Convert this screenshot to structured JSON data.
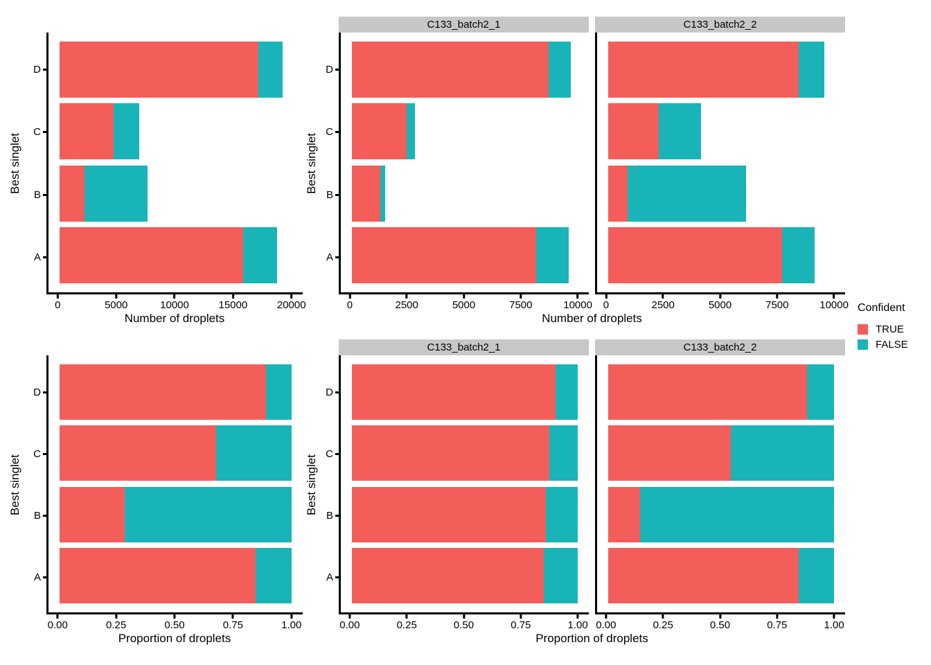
{
  "figure": {
    "background": "#FFFFFF"
  },
  "colors": {
    "TRUE": "#F35E5A",
    "FALSE": "#18B4B8",
    "strip_background": "#C7C7C7",
    "axis": "#000000"
  },
  "legend": {
    "title": "Confident",
    "items": [
      {
        "label": "TRUE",
        "color_key": "TRUE"
      },
      {
        "label": "FALSE",
        "color_key": "FALSE"
      }
    ]
  },
  "chart_data": [
    {
      "type": "bar",
      "orientation": "horizontal",
      "stacked": true,
      "panel": "counts combined",
      "xlabel": "Number of droplets",
      "ylabel": "Best singlet",
      "categories": [
        "A",
        "B",
        "C",
        "D"
      ],
      "series": [
        {
          "name": "TRUE",
          "values": [
            15850,
            2120,
            4660,
            17140
          ]
        },
        {
          "name": "FALSE",
          "values": [
            2880,
            5450,
            2230,
            2100
          ]
        }
      ],
      "xlim": [
        0,
        20000
      ],
      "tick_values": [
        0,
        5000,
        10000,
        15000,
        20000
      ],
      "tick_labels": [
        "0",
        "5000",
        "10000",
        "15000",
        "20000"
      ],
      "grid": false
    },
    {
      "type": "bar",
      "orientation": "horizontal",
      "stacked": true,
      "panel": "counts by sample",
      "xlabel": "Number of droplets",
      "ylabel": "Best singlet",
      "categories": [
        "A",
        "B",
        "C",
        "D"
      ],
      "facets": [
        {
          "label": "C133_batch2_1",
          "series": [
            {
              "name": "TRUE",
              "values": [
                8150,
                1260,
                2430,
                8720
              ]
            },
            {
              "name": "FALSE",
              "values": [
                1450,
                210,
                350,
                960
              ]
            }
          ]
        },
        {
          "label": "C133_batch2_2",
          "series": [
            {
              "name": "TRUE",
              "values": [
                7700,
                860,
                2230,
                8420
              ]
            },
            {
              "name": "FALSE",
              "values": [
                1430,
                5240,
                1880,
                1140
              ]
            }
          ]
        }
      ],
      "xlim": [
        0,
        10000
      ],
      "tick_values": [
        0,
        2500,
        5000,
        7500,
        10000
      ],
      "tick_labels": [
        "0",
        "2500",
        "5000",
        "7500",
        "10000"
      ],
      "grid": false
    },
    {
      "type": "bar",
      "orientation": "horizontal",
      "stacked": true,
      "panel": "proportions combined",
      "xlabel": "Proportion of droplets",
      "ylabel": "Best singlet",
      "categories": [
        "A",
        "B",
        "C",
        "D"
      ],
      "series": [
        {
          "name": "TRUE",
          "values": [
            0.846,
            0.28,
            0.676,
            0.891
          ]
        },
        {
          "name": "FALSE",
          "values": [
            0.154,
            0.72,
            0.324,
            0.109
          ]
        }
      ],
      "xlim": [
        0,
        1
      ],
      "tick_values": [
        0,
        0.25,
        0.5,
        0.75,
        1
      ],
      "tick_labels": [
        "0.00",
        "0.25",
        "0.50",
        "0.75",
        "1.00"
      ],
      "grid": false
    },
    {
      "type": "bar",
      "orientation": "horizontal",
      "stacked": true,
      "panel": "proportions by sample",
      "xlabel": "Proportion of droplets",
      "ylabel": "Best singlet",
      "categories": [
        "A",
        "B",
        "C",
        "D"
      ],
      "facets": [
        {
          "label": "C133_batch2_1",
          "series": [
            {
              "name": "TRUE",
              "values": [
                0.849,
                0.857,
                0.874,
                0.901
              ]
            },
            {
              "name": "FALSE",
              "values": [
                0.151,
                0.143,
                0.126,
                0.099
              ]
            }
          ]
        },
        {
          "label": "C133_batch2_2",
          "series": [
            {
              "name": "TRUE",
              "values": [
                0.843,
                0.141,
                0.543,
                0.881
              ]
            },
            {
              "name": "FALSE",
              "values": [
                0.157,
                0.859,
                0.457,
                0.119
              ]
            }
          ]
        }
      ],
      "xlim": [
        0,
        1
      ],
      "tick_values": [
        0,
        0.25,
        0.5,
        0.75,
        1
      ],
      "tick_labels": [
        "0.00",
        "0.25",
        "0.50",
        "0.75",
        "1.00"
      ],
      "grid": false
    }
  ]
}
